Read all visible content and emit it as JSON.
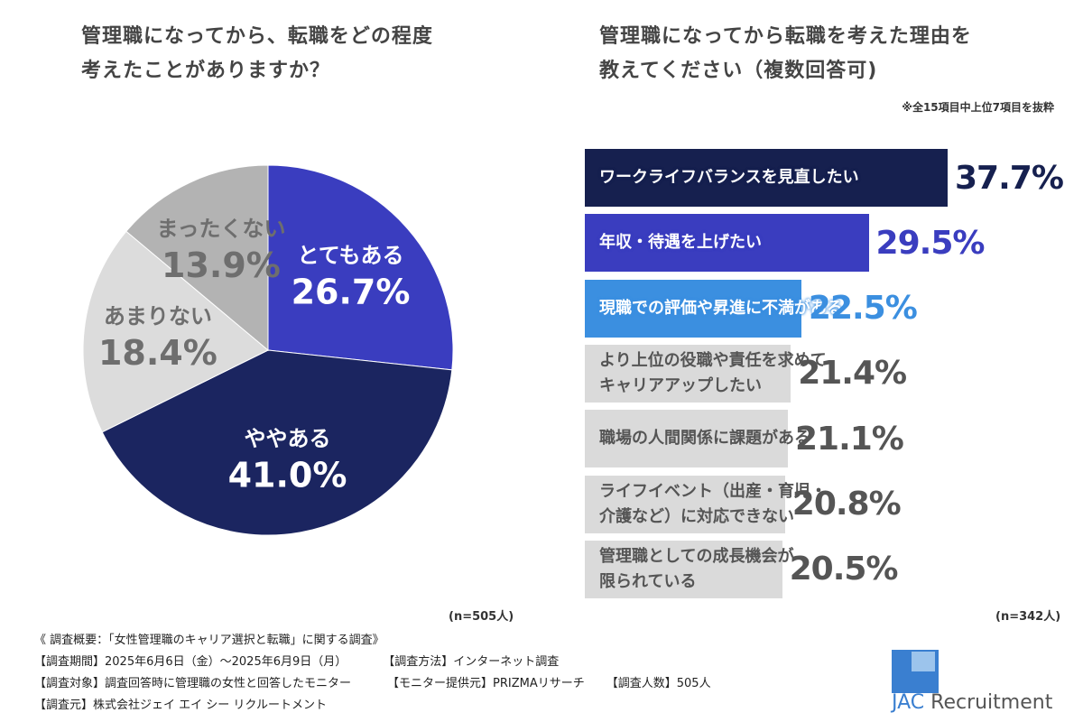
{
  "chart_data": [
    {
      "type": "pie",
      "title": "管理職になってから、転職をどの程度\n考えたことがありますか？",
      "categories": [
        "とてもある",
        "ややある",
        "あまりない",
        "まったくない"
      ],
      "values": [
        26.7,
        41.0,
        18.4,
        13.9
      ],
      "value_labels": [
        "26.7%",
        "41.0%",
        "18.4%",
        "13.9%"
      ],
      "colors": [
        "#3a3dbf",
        "#1b2560",
        "#dcdcdc",
        "#b3b3b3"
      ],
      "label_colors": [
        "#ffffff",
        "#ffffff",
        "#6e6e6e",
        "#6e6e6e"
      ],
      "note": "(n=505人)"
    },
    {
      "type": "bar",
      "orientation": "horizontal",
      "title": "管理職になってから転職を考えた理由を\n教えてください（複数回答可)",
      "subtitle": "※全15項目中上位7項目を抜粋",
      "categories": [
        "ワークライフバランスを見直したい",
        "年収・待遇を上げたい",
        "現職での評価や昇進に不満がある",
        "より上位の役職や責任を求めて\nキャリアアップしたい",
        "職場の人間関係に課題がある",
        "ライフイベント（出産・育児・\n介護など）に対応できない",
        "管理職としての成長機会が\n限られている"
      ],
      "values": [
        37.7,
        29.5,
        22.5,
        21.4,
        21.1,
        20.8,
        20.5
      ],
      "value_labels": [
        "37.7%",
        "29.5%",
        "22.5%",
        "21.4%",
        "21.1%",
        "20.8%",
        "20.5%"
      ],
      "colors": [
        "#16204f",
        "#3a3dbf",
        "#3b8fe0",
        "#dadada",
        "#dadada",
        "#dadada",
        "#dadada"
      ],
      "label_colors": [
        "#ffffff",
        "#ffffff",
        "#ffffff",
        "#555555",
        "#555555",
        "#555555",
        "#555555"
      ],
      "value_label_colors": [
        "#16204f",
        "#3a3dbf",
        "#3b8fe0",
        "#555555",
        "#555555",
        "#555555",
        "#555555"
      ],
      "note": "(n=342人)"
    }
  ],
  "footer": {
    "heading": "《 調査概要：「女性管理職のキャリア選択と転職」に関する調査》",
    "lines": [
      [
        "【調査期間】2025年6月6日（金）～2025年6月9日（月）",
        "【調査方法】インターネット調査"
      ],
      [
        "【調査対象】調査回答時に管理職の女性と回答したモニター",
        "【モニター提供元】PRIZMAリサーチ",
        "【調査人数】505人"
      ],
      [
        "【調査元】株式会社ジェイ エイ シー リクルートメント"
      ]
    ]
  },
  "logo": {
    "mark": "JAC",
    "name": "Recruitment"
  }
}
